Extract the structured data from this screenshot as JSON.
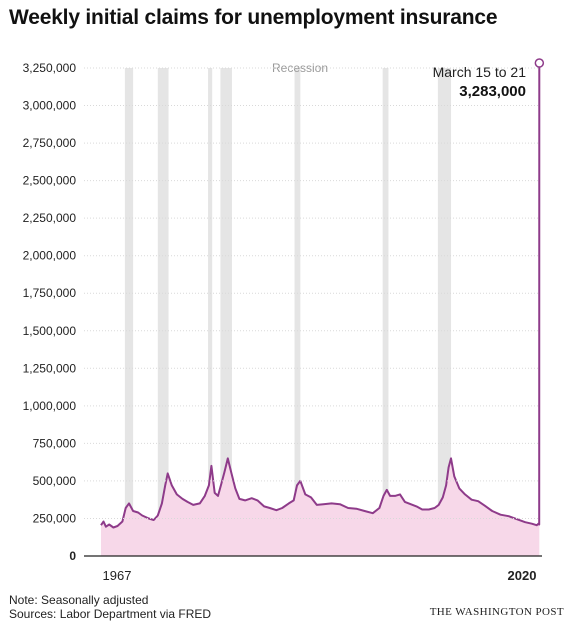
{
  "chart_data": {
    "type": "area",
    "title": "Weekly initial claims for unemployment insurance",
    "x_tick_labels": [
      "1967",
      "2020"
    ],
    "xlim": [
      1967,
      2020.3
    ],
    "ylim": [
      0,
      3250000
    ],
    "y_ticks": [
      0,
      250000,
      500000,
      750000,
      1000000,
      1250000,
      1500000,
      1750000,
      2000000,
      2250000,
      2500000,
      2750000,
      3000000,
      3250000
    ],
    "y_tick_labels": [
      "0",
      "250,000",
      "500,000",
      "750,000",
      "1,000,000",
      "1,250,000",
      "1,500,000",
      "1,750,000",
      "2,000,000",
      "2,250,000",
      "2,500,000",
      "2,750,000",
      "3,000,000",
      "3,250,000"
    ],
    "recession_label": "Recession",
    "recessions": [
      [
        1969.9,
        1970.9
      ],
      [
        1973.9,
        1975.2
      ],
      [
        1980.0,
        1980.5
      ],
      [
        1981.5,
        1982.9
      ],
      [
        1990.5,
        1991.2
      ],
      [
        2001.2,
        2001.9
      ],
      [
        2007.9,
        2009.5
      ]
    ],
    "series": [
      {
        "x": [
          1967.0,
          1967.3,
          1967.6,
          1968.0,
          1968.5,
          1969.0,
          1969.6,
          1970.0,
          1970.4,
          1970.9,
          1971.5,
          1972.0,
          1972.8,
          1973.4,
          1973.9,
          1974.4,
          1974.8,
          1975.1,
          1975.6,
          1976.2,
          1976.9,
          1977.5,
          1978.2,
          1979.0,
          1979.6,
          1980.1,
          1980.4,
          1980.8,
          1981.2,
          1981.6,
          1982.0,
          1982.4,
          1982.8,
          1983.3,
          1983.8,
          1984.5,
          1985.3,
          1986.0,
          1986.8,
          1987.5,
          1988.3,
          1989.0,
          1989.8,
          1990.4,
          1990.8,
          1991.2,
          1991.8,
          1992.5,
          1993.2,
          1994.0,
          1995.0,
          1996.0,
          1997.0,
          1998.0,
          1999.0,
          2000.0,
          2000.8,
          2001.3,
          2001.7,
          2002.1,
          2002.7,
          2003.3,
          2003.9,
          2004.6,
          2005.3,
          2006.0,
          2006.8,
          2007.5,
          2008.0,
          2008.5,
          2008.9,
          2009.2,
          2009.5,
          2009.9,
          2010.5,
          2011.2,
          2012.0,
          2012.8,
          2013.6,
          2014.5,
          2015.5,
          2016.5,
          2017.5,
          2018.5,
          2019.3,
          2019.9,
          2020.1,
          2020.2,
          2020.22
        ],
        "values": [
          205000,
          230000,
          195000,
          210000,
          190000,
          200000,
          230000,
          320000,
          350000,
          300000,
          290000,
          270000,
          250000,
          240000,
          270000,
          350000,
          470000,
          550000,
          470000,
          410000,
          380000,
          360000,
          340000,
          350000,
          400000,
          470000,
          600000,
          420000,
          400000,
          480000,
          560000,
          650000,
          560000,
          450000,
          380000,
          370000,
          385000,
          370000,
          330000,
          320000,
          305000,
          320000,
          350000,
          370000,
          470000,
          500000,
          410000,
          390000,
          340000,
          345000,
          350000,
          345000,
          320000,
          315000,
          300000,
          285000,
          320000,
          400000,
          440000,
          400000,
          400000,
          410000,
          360000,
          345000,
          330000,
          310000,
          310000,
          320000,
          340000,
          390000,
          470000,
          590000,
          650000,
          530000,
          450000,
          410000,
          375000,
          365000,
          335000,
          300000,
          275000,
          265000,
          245000,
          225000,
          215000,
          205000,
          215000,
          210000,
          3283000
        ]
      }
    ],
    "callout": {
      "label": "March 15 to 21",
      "value": 3283000,
      "value_label": "3,283,000"
    }
  },
  "footer": {
    "note": "Note: Seasonally adjusted",
    "sources": "Sources: Labor Department via FRED",
    "credit": "THE WASHINGTON POST"
  },
  "colors": {
    "line": "#8e3b8a",
    "fill": "#f7d8e9",
    "recession": "#e5e5e5",
    "axis": "#222222"
  }
}
